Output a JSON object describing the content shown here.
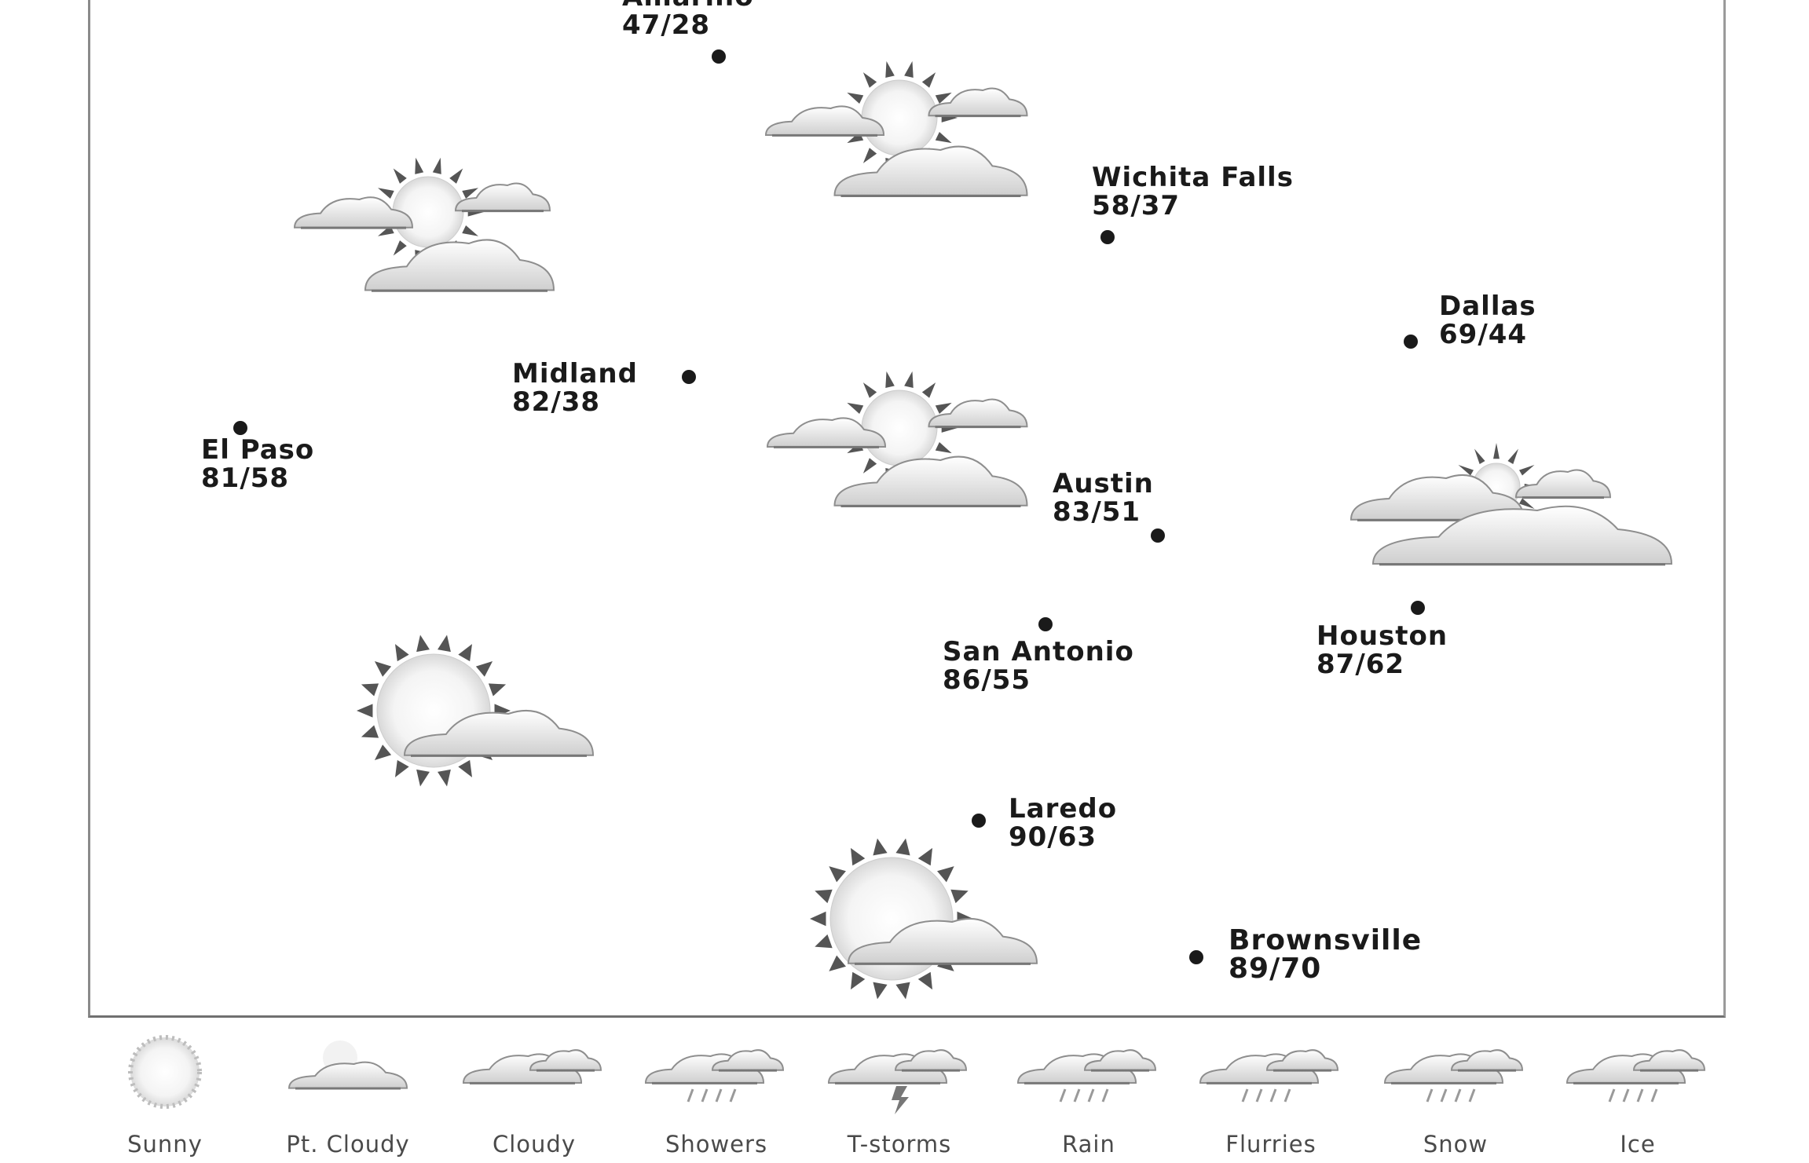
{
  "cities": [
    {
      "id": "amarillo",
      "name": "Amarillo",
      "temps": "47/28"
    },
    {
      "id": "wichita-falls",
      "name": "Wichita Falls",
      "temps": "58/37"
    },
    {
      "id": "dallas",
      "name": "Dallas",
      "temps": "69/44"
    },
    {
      "id": "midland",
      "name": "Midland",
      "temps": "82/38"
    },
    {
      "id": "el-paso",
      "name": "El Paso",
      "temps": "81/58"
    },
    {
      "id": "austin",
      "name": "Austin",
      "temps": "83/51"
    },
    {
      "id": "san-antonio",
      "name": "San Antonio",
      "temps": "86/55"
    },
    {
      "id": "houston",
      "name": "Houston",
      "temps": "87/62"
    },
    {
      "id": "laredo",
      "name": "Laredo",
      "temps": "90/63"
    },
    {
      "id": "brownsville",
      "name": "Brownsville",
      "temps": "89/70"
    }
  ],
  "legend": [
    {
      "label": "Sunny",
      "icon": "sunny-icon"
    },
    {
      "label": "Pt. Cloudy",
      "icon": "partly-cloudy-icon"
    },
    {
      "label": "Cloudy",
      "icon": "cloudy-icon"
    },
    {
      "label": "Showers",
      "icon": "showers-icon"
    },
    {
      "label": "T-storms",
      "icon": "thunderstorms-icon"
    },
    {
      "label": "Rain",
      "icon": "rain-icon"
    },
    {
      "label": "Flurries",
      "icon": "flurries-icon"
    },
    {
      "label": "Snow",
      "icon": "snow-icon"
    },
    {
      "label": "Ice",
      "icon": "ice-icon"
    }
  ],
  "colors": {
    "text": "#1a1a1a",
    "cloud": "#e9e9e9",
    "cloud_outline": "#8e8e8e",
    "sun_ray": "#5a5a5a"
  }
}
